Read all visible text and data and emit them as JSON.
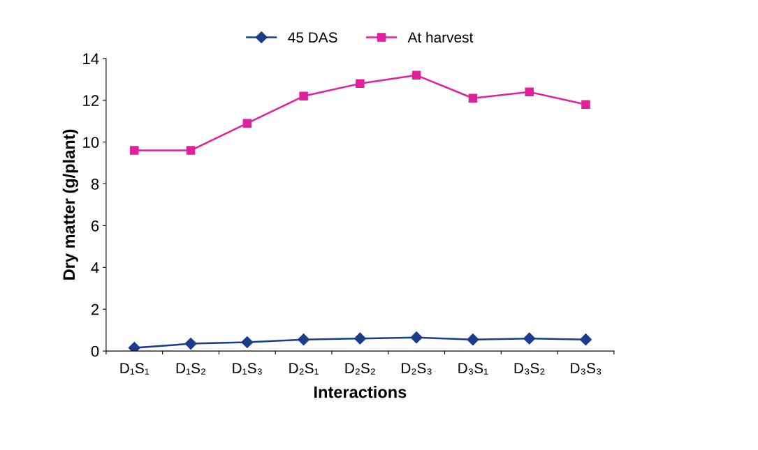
{
  "chart_data": {
    "type": "line",
    "xlabel": "Interactions",
    "ylabel": "Dry matter (g/plant)",
    "categories": [
      "D₁S₁",
      "D₁S₂",
      "D₁S₃",
      "D₂S₁",
      "D₂S₂",
      "D₂S₃",
      "D₃S₁",
      "D₃S₂",
      "D₃S₃"
    ],
    "series": [
      {
        "name": "45 DAS",
        "color": "#1a3c8c",
        "marker": "diamond",
        "values": [
          0.15,
          0.35,
          0.42,
          0.55,
          0.6,
          0.65,
          0.55,
          0.6,
          0.55
        ]
      },
      {
        "name": "At harvest",
        "color": "#e0209c",
        "marker": "square",
        "values": [
          9.6,
          9.6,
          10.9,
          12.2,
          12.8,
          13.2,
          12.1,
          12.4,
          11.8
        ]
      }
    ],
    "ylim": [
      0,
      14
    ],
    "yticks": [
      0,
      2,
      4,
      6,
      8,
      10,
      12,
      14
    ],
    "grid": false,
    "legend": "top",
    "line_style": "solid"
  }
}
